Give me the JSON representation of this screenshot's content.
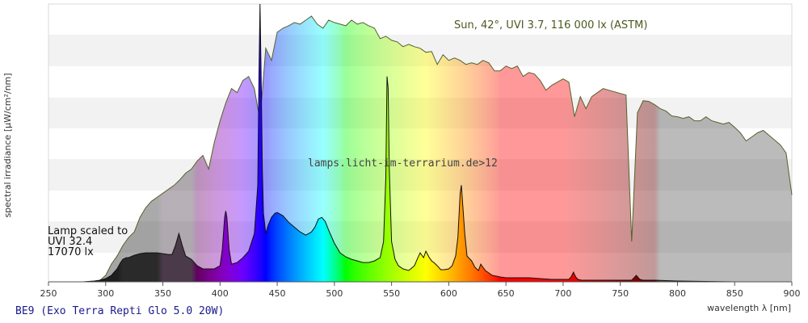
{
  "chart_data": {
    "type": "area",
    "xlabel": "wavelength λ [nm]",
    "ylabel": "spectral irradiance [µW/cm²/nm]",
    "xlim": [
      250,
      900
    ],
    "x_ticks": [
      250,
      300,
      350,
      400,
      450,
      500,
      550,
      600,
      650,
      700,
      750,
      800,
      850,
      900
    ],
    "grid": "horizontal bands",
    "sun_label": "Sun, 42°, UVI 3.7, 116 000 lx (ASTM)",
    "watermark": "lamps.licht-im-terrarium.de>12",
    "lamp_label_lines": [
      "Lamp scaled to",
      "UVI 32.4",
      "17070 lx"
    ],
    "footer_title": "BE9 (Exo Terra Repti Glo 5.0 20W)",
    "series": [
      {
        "key": "sun",
        "color": "#55622e",
        "x": [
          290,
          295,
          300,
          305,
          310,
          315,
          320,
          325,
          330,
          335,
          340,
          345,
          350,
          355,
          360,
          365,
          370,
          375,
          380,
          385,
          390,
          395,
          400,
          405,
          410,
          415,
          420,
          425,
          430,
          435,
          440,
          445,
          450,
          455,
          460,
          465,
          470,
          475,
          480,
          485,
          490,
          495,
          500,
          505,
          510,
          515,
          520,
          525,
          530,
          535,
          540,
          545,
          550,
          555,
          560,
          565,
          570,
          575,
          580,
          585,
          590,
          595,
          600,
          605,
          610,
          615,
          620,
          625,
          630,
          635,
          640,
          645,
          650,
          655,
          660,
          665,
          670,
          675,
          680,
          685,
          690,
          695,
          700,
          705,
          710,
          715,
          720,
          725,
          730,
          735,
          740,
          745,
          750,
          755,
          760,
          765,
          770,
          775,
          780,
          785,
          790,
          795,
          800,
          805,
          810,
          815,
          820,
          825,
          830,
          835,
          840,
          845,
          850,
          855,
          860,
          865,
          870,
          875,
          880,
          885,
          890,
          895,
          900
        ],
        "y": [
          0,
          2,
          8,
          22,
          32,
          45,
          55,
          62,
          80,
          92,
          100,
          105,
          110,
          115,
          120,
          127,
          135,
          140,
          150,
          157,
          140,
          173,
          200,
          222,
          240,
          235,
          250,
          255,
          240,
          200,
          290,
          275,
          310,
          315,
          318,
          322,
          320,
          325,
          330,
          320,
          315,
          325,
          322,
          320,
          318,
          325,
          320,
          322,
          318,
          315,
          302,
          305,
          300,
          298,
          292,
          295,
          292,
          290,
          285,
          286,
          270,
          282,
          275,
          278,
          275,
          270,
          272,
          270,
          275,
          272,
          262,
          262,
          268,
          265,
          268,
          255,
          260,
          258,
          250,
          238,
          244,
          248,
          252,
          248,
          205,
          230,
          215,
          230,
          235,
          240,
          238,
          236,
          234,
          232,
          50,
          210,
          225,
          224,
          220,
          215,
          212,
          206,
          205,
          203,
          205,
          200,
          200,
          205,
          200,
          198,
          196,
          198,
          192,
          185,
          175,
          180,
          185,
          188,
          182,
          176,
          170,
          160,
          108
        ]
      },
      {
        "key": "lamp",
        "color": "#111111",
        "x": [
          250,
          280,
          290,
          295,
          300,
          305,
          310,
          313,
          315,
          318,
          320,
          325,
          330,
          335,
          340,
          345,
          350,
          355,
          358,
          361,
          364,
          367,
          370,
          375,
          380,
          385,
          390,
          395,
          400,
          402,
          404,
          405,
          406,
          408,
          410,
          415,
          420,
          425,
          430,
          433,
          434,
          435,
          436,
          437,
          438,
          440,
          442,
          445,
          448,
          450,
          455,
          460,
          465,
          470,
          475,
          480,
          483,
          486,
          489,
          492,
          495,
          500,
          505,
          510,
          515,
          520,
          525,
          530,
          535,
          540,
          543,
          545,
          546,
          547,
          548,
          550,
          553,
          556,
          560,
          565,
          570,
          573,
          575,
          578,
          580,
          583,
          585,
          587,
          590,
          593,
          596,
          600,
          603,
          606,
          608,
          610,
          611,
          612,
          614,
          616,
          620,
          623,
          626,
          628,
          630,
          632,
          634,
          638,
          645,
          650,
          660,
          670,
          680,
          690,
          700,
          705,
          707,
          709,
          711,
          713,
          716,
          720,
          730,
          740,
          750,
          755,
          760,
          762,
          764,
          767,
          770,
          780,
          800,
          850,
          900
        ],
        "y": [
          0,
          0,
          1,
          2,
          4,
          8,
          16,
          24,
          28,
          30,
          30,
          33,
          35,
          36,
          36,
          36,
          35,
          34,
          34,
          45,
          60,
          45,
          32,
          28,
          20,
          16,
          16,
          16,
          20,
          40,
          80,
          88,
          80,
          40,
          22,
          24,
          30,
          38,
          60,
          120,
          250,
          345,
          250,
          140,
          85,
          60,
          70,
          80,
          85,
          86,
          82,
          74,
          68,
          62,
          58,
          62,
          68,
          78,
          80,
          75,
          64,
          48,
          36,
          31,
          28,
          26,
          24,
          24,
          26,
          30,
          50,
          130,
          255,
          240,
          140,
          50,
          28,
          20,
          16,
          14,
          20,
          30,
          36,
          30,
          38,
          30,
          26,
          24,
          20,
          15,
          15,
          16,
          20,
          32,
          55,
          110,
          120,
          100,
          60,
          32,
          26,
          18,
          14,
          22,
          18,
          14,
          12,
          8,
          6,
          5,
          5,
          5,
          4,
          3,
          3,
          3,
          6,
          12,
          6,
          3,
          2,
          2,
          2,
          2,
          2,
          2,
          2,
          5,
          8,
          3,
          2,
          2,
          1,
          0,
          0
        ]
      }
    ]
  }
}
